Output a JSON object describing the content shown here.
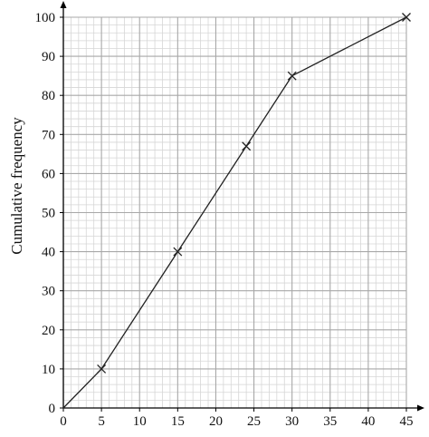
{
  "chart_data": {
    "type": "line",
    "title": "",
    "xlabel": "",
    "ylabel": "Cumulative frequency",
    "xlim": [
      0,
      45
    ],
    "ylim": [
      0,
      100
    ],
    "x_ticks": [
      0,
      5,
      10,
      15,
      20,
      25,
      30,
      35,
      40,
      45
    ],
    "y_ticks": [
      0,
      10,
      20,
      30,
      40,
      50,
      60,
      70,
      80,
      90,
      100
    ],
    "grid": true,
    "grid_minor_divisions": 5,
    "marker": "cross",
    "colors": {
      "major_grid": "#a8a8a8",
      "minor_grid": "#d6d6d6",
      "line": "#222222",
      "axis": "#000000"
    },
    "series": [
      {
        "x": [
          0,
          5,
          15,
          24,
          30,
          45
        ],
        "y": [
          0,
          10,
          40,
          67,
          85,
          100
        ],
        "marked": [
          false,
          true,
          true,
          true,
          true,
          true
        ]
      }
    ]
  }
}
